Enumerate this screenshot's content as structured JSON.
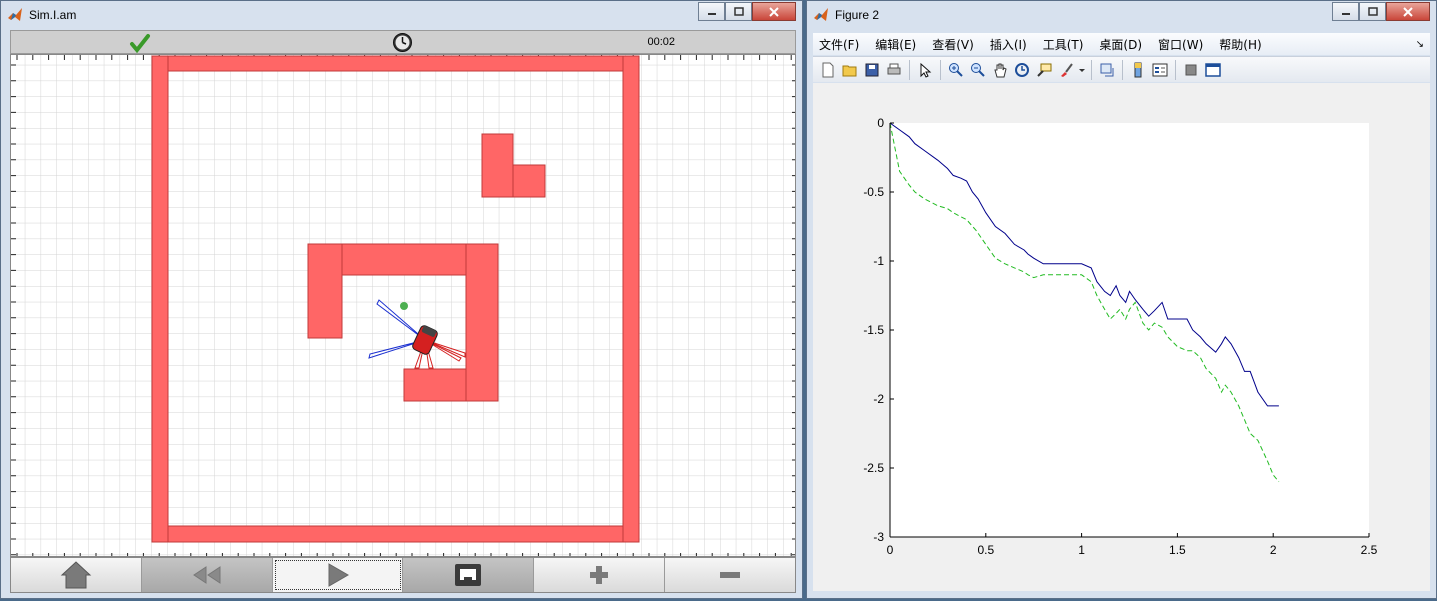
{
  "sim_window": {
    "title": "Sim.I.am",
    "timer": "00:02",
    "icons": [
      "matlab-logo-icon",
      "checkmark-icon",
      "clock-icon",
      "home-icon",
      "rewind-icon",
      "play-icon",
      "network-icon",
      "zoom-in-icon",
      "zoom-out-icon"
    ],
    "colors": {
      "wall": "#ff6666",
      "wall_border": "#cc3333",
      "robot": "#d42020",
      "goal": "#4caf50",
      "ir_blue": "#1a2fd0",
      "ir_red": "#d42020"
    }
  },
  "figure_window": {
    "title": "Figure 2",
    "menu": [
      "文件(F)",
      "编辑(E)",
      "查看(V)",
      "插入(I)",
      "工具(T)",
      "桌面(D)",
      "窗口(W)",
      "帮助(H)"
    ],
    "toolbar_icons": [
      "new-file-icon",
      "open-folder-icon",
      "save-icon",
      "print-icon",
      "pointer-icon",
      "zoom-in-icon",
      "zoom-out-icon",
      "pan-icon",
      "rotate-icon",
      "data-cursor-icon",
      "brush-icon",
      "link-icon",
      "colorbar-icon",
      "legend-icon",
      "hide-tools-icon",
      "dock-icon"
    ]
  },
  "chart_data": {
    "type": "line",
    "xlim": [
      0,
      2.5
    ],
    "ylim": [
      -3,
      0
    ],
    "xticks": [
      "0",
      "0.5",
      "1",
      "1.5",
      "2",
      "2.5"
    ],
    "yticks": [
      "0",
      "-0.5",
      "-1",
      "-1.5",
      "-2",
      "-2.5",
      "-3"
    ],
    "grid": false,
    "series": [
      {
        "color": "#00008b",
        "style": "solid",
        "x": [
          0,
          0.05,
          0.1,
          0.13,
          0.18,
          0.25,
          0.3,
          0.33,
          0.37,
          0.4,
          0.43,
          0.46,
          0.5,
          0.55,
          0.6,
          0.65,
          0.7,
          0.72,
          0.75,
          0.8,
          0.85,
          0.9,
          1.0,
          1.05,
          1.08,
          1.12,
          1.15,
          1.18,
          1.2,
          1.23,
          1.25,
          1.28,
          1.32,
          1.35,
          1.38,
          1.42,
          1.45,
          1.5,
          1.55,
          1.58,
          1.62,
          1.65,
          1.7,
          1.73,
          1.75,
          1.78,
          1.82,
          1.85,
          1.88,
          1.92,
          1.97,
          2.0,
          2.03
        ],
        "y": [
          0,
          -0.05,
          -0.1,
          -0.15,
          -0.2,
          -0.27,
          -0.33,
          -0.38,
          -0.4,
          -0.42,
          -0.5,
          -0.55,
          -0.65,
          -0.75,
          -0.8,
          -0.88,
          -0.92,
          -0.95,
          -0.98,
          -1.02,
          -1.02,
          -1.02,
          -1.02,
          -1.05,
          -1.15,
          -1.22,
          -1.25,
          -1.18,
          -1.25,
          -1.3,
          -1.22,
          -1.28,
          -1.35,
          -1.4,
          -1.36,
          -1.3,
          -1.42,
          -1.42,
          -1.42,
          -1.5,
          -1.55,
          -1.6,
          -1.66,
          -1.6,
          -1.55,
          -1.6,
          -1.7,
          -1.8,
          -1.8,
          -1.95,
          -2.05,
          -2.05,
          -2.05
        ]
      },
      {
        "color": "#22bb22",
        "style": "dashed",
        "x": [
          0,
          0.05,
          0.1,
          0.13,
          0.18,
          0.25,
          0.3,
          0.33,
          0.37,
          0.4,
          0.45,
          0.5,
          0.55,
          0.6,
          0.65,
          0.7,
          0.72,
          0.75,
          0.8,
          0.85,
          0.9,
          1.0,
          1.05,
          1.08,
          1.12,
          1.15,
          1.18,
          1.2,
          1.23,
          1.25,
          1.28,
          1.32,
          1.35,
          1.38,
          1.42,
          1.45,
          1.5,
          1.55,
          1.58,
          1.62,
          1.65,
          1.7,
          1.73,
          1.75,
          1.78,
          1.82,
          1.85,
          1.88,
          1.92,
          1.97,
          2.0,
          2.03
        ],
        "y": [
          0,
          -0.35,
          -0.45,
          -0.5,
          -0.55,
          -0.6,
          -0.62,
          -0.65,
          -0.68,
          -0.7,
          -0.78,
          -0.88,
          -0.98,
          -1.02,
          -1.05,
          -1.08,
          -1.1,
          -1.12,
          -1.1,
          -1.1,
          -1.1,
          -1.1,
          -1.15,
          -1.25,
          -1.35,
          -1.42,
          -1.38,
          -1.35,
          -1.42,
          -1.35,
          -1.3,
          -1.45,
          -1.5,
          -1.45,
          -1.48,
          -1.55,
          -1.62,
          -1.65,
          -1.65,
          -1.7,
          -1.78,
          -1.85,
          -1.95,
          -1.9,
          -1.95,
          -2.05,
          -2.15,
          -2.25,
          -2.3,
          -2.45,
          -2.55,
          -2.6
        ]
      }
    ]
  }
}
